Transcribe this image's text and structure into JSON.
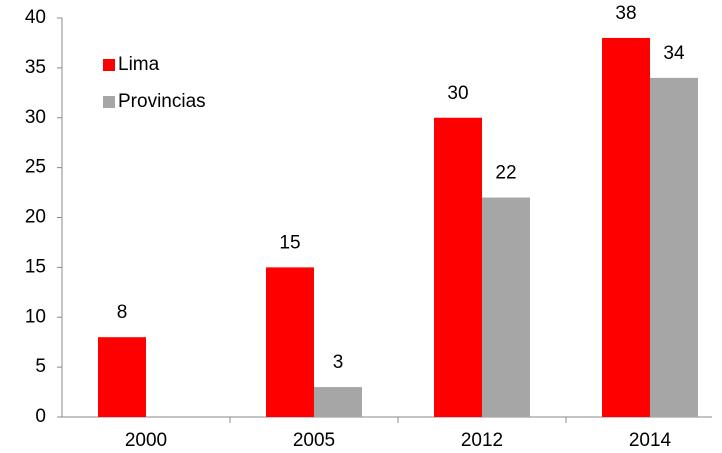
{
  "chart_data": {
    "type": "bar",
    "categories": [
      "2000",
      "2005",
      "2012",
      "2014"
    ],
    "series": [
      {
        "name": "Lima",
        "color": "#ff0000",
        "values": [
          8,
          15,
          30,
          38
        ]
      },
      {
        "name": "Provincias",
        "color": "#a6a6a6",
        "values": [
          null,
          3,
          22,
          34
        ]
      }
    ],
    "ylim": [
      0,
      40
    ],
    "yticks": [
      0,
      5,
      10,
      15,
      20,
      25,
      30,
      35,
      40
    ],
    "grid": false,
    "legend": "top-left"
  }
}
